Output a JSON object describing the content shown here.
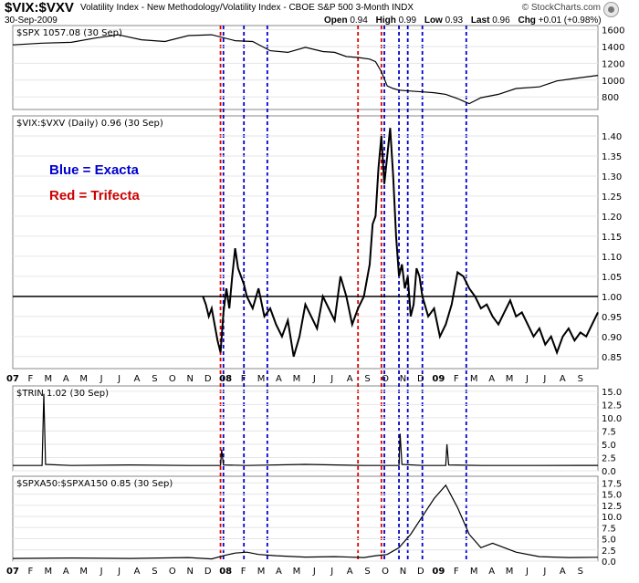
{
  "header": {
    "symbol": "$VIX:$VXV",
    "description": "Volatility Index - New Methodology/Volatility Index - CBOE S&P 500 3-Month  INDX",
    "date": "30-Sep-2009",
    "open_label": "Open",
    "open": "0.94",
    "high_label": "High",
    "high": "0.99",
    "low_label": "Low",
    "low": "0.93",
    "last_label": "Last",
    "last": "0.96",
    "chg_label": "Chg",
    "chg": "+0.01 (+0.98%)",
    "credit": "© StockCharts.com",
    "credit_icon": "stockcharts-logo-icon"
  },
  "annotations": {
    "blue": "Blue = Exacta",
    "red": "Red = Trifecta",
    "colors": {
      "blue": "#0000cc",
      "red": "#dd0000"
    }
  },
  "chart_data": [
    {
      "type": "line",
      "panel": "spx",
      "label": "$SPX 1057.08 (30 Sep)",
      "yticks": [
        800,
        1000,
        1200,
        1400,
        1600
      ],
      "ylim": [
        650,
        1650
      ],
      "series": [
        {
          "t": [
            0,
            0.05,
            0.1,
            0.14,
            0.18,
            0.22,
            0.26,
            0.3,
            0.34,
            0.38,
            0.41,
            0.44,
            0.47,
            0.5,
            0.53,
            0.55,
            0.57,
            0.59,
            0.61,
            0.62,
            0.63,
            0.64,
            0.65,
            0.66,
            0.68,
            0.7,
            0.72,
            0.74,
            0.76,
            0.78,
            0.8,
            0.83,
            0.86,
            0.9,
            0.93,
            0.96,
            1.0
          ],
          "values": [
            1420,
            1440,
            1450,
            1500,
            1540,
            1480,
            1460,
            1530,
            1540,
            1470,
            1460,
            1350,
            1330,
            1390,
            1340,
            1330,
            1280,
            1270,
            1250,
            1220,
            1100,
            930,
            900,
            880,
            870,
            860,
            850,
            830,
            780,
            720,
            790,
            830,
            900,
            920,
            990,
            1020,
            1057
          ]
        }
      ],
      "color": "#000000"
    },
    {
      "type": "line",
      "panel": "main",
      "label": "$VIX:$VXV (Daily) 0.96 (30 Sep)",
      "yticks": [
        0.85,
        0.9,
        0.95,
        1.0,
        1.05,
        1.1,
        1.15,
        1.2,
        1.25,
        1.3,
        1.35,
        1.4
      ],
      "ylim": [
        0.82,
        1.45
      ],
      "reference_line": 1.0,
      "series": [
        {
          "t": [
            0.325,
            0.33,
            0.335,
            0.34,
            0.345,
            0.35,
            0.355,
            0.36,
            0.365,
            0.37,
            0.375,
            0.38,
            0.385,
            0.39,
            0.395,
            0.4,
            0.41,
            0.42,
            0.43,
            0.44,
            0.45,
            0.46,
            0.47,
            0.48,
            0.49,
            0.5,
            0.51,
            0.52,
            0.53,
            0.54,
            0.55,
            0.56,
            0.57,
            0.58,
            0.59,
            0.6,
            0.61,
            0.615,
            0.62,
            0.625,
            0.63,
            0.635,
            0.64,
            0.645,
            0.65,
            0.655,
            0.66,
            0.665,
            0.67,
            0.675,
            0.68,
            0.685,
            0.69,
            0.695,
            0.7,
            0.71,
            0.72,
            0.73,
            0.74,
            0.75,
            0.76,
            0.77,
            0.78,
            0.79,
            0.8,
            0.81,
            0.82,
            0.83,
            0.84,
            0.85,
            0.86,
            0.87,
            0.88,
            0.89,
            0.9,
            0.91,
            0.92,
            0.93,
            0.94,
            0.95,
            0.96,
            0.97,
            0.98,
            0.99,
            1.0
          ],
          "values": [
            1.0,
            0.98,
            0.95,
            0.97,
            0.93,
            0.89,
            0.86,
            0.96,
            1.02,
            0.97,
            1.05,
            1.12,
            1.07,
            1.05,
            1.03,
            1.0,
            0.97,
            1.02,
            0.95,
            0.97,
            0.93,
            0.9,
            0.94,
            0.85,
            0.9,
            0.98,
            0.95,
            0.92,
            1.0,
            0.97,
            0.94,
            1.05,
            1.0,
            0.93,
            0.97,
            1.0,
            1.08,
            1.18,
            1.2,
            1.32,
            1.4,
            1.28,
            1.35,
            1.42,
            1.3,
            1.15,
            1.05,
            1.08,
            1.02,
            1.05,
            0.95,
            0.98,
            1.07,
            1.05,
            1.0,
            0.95,
            0.97,
            0.9,
            0.93,
            0.98,
            1.06,
            1.05,
            1.02,
            1.0,
            0.97,
            0.98,
            0.95,
            0.93,
            0.96,
            0.99,
            0.95,
            0.96,
            0.93,
            0.9,
            0.92,
            0.88,
            0.9,
            0.86,
            0.9,
            0.92,
            0.89,
            0.91,
            0.9,
            0.93,
            0.96
          ]
        }
      ],
      "color": "#000000",
      "xticks": [
        "07",
        "F",
        "M",
        "A",
        "M",
        "J",
        "J",
        "A",
        "S",
        "O",
        "N",
        "D",
        "08",
        "F",
        "M",
        "A",
        "M",
        "J",
        "J",
        "A",
        "S",
        "O",
        "N",
        "D",
        "09",
        "F",
        "M",
        "A",
        "M",
        "J",
        "J",
        "A",
        "S"
      ]
    },
    {
      "type": "line",
      "panel": "trin",
      "label": "$TRIN 1.02 (30 Sep)",
      "yticks": [
        0.0,
        2.5,
        5.0,
        7.5,
        10.0,
        12.5,
        15.0
      ],
      "ylim": [
        0,
        16
      ],
      "series": [
        {
          "t": [
            0,
            0.05,
            0.053,
            0.056,
            0.1,
            0.2,
            0.3,
            0.355,
            0.357,
            0.36,
            0.4,
            0.5,
            0.6,
            0.66,
            0.662,
            0.665,
            0.7,
            0.74,
            0.742,
            0.745,
            0.8,
            0.9,
            1.0
          ],
          "values": [
            1.0,
            1.0,
            14.5,
            1.2,
            1.0,
            1.1,
            1.0,
            1.0,
            4.0,
            1.1,
            1.0,
            1.2,
            1.0,
            1.0,
            7.0,
            1.2,
            1.0,
            1.0,
            5.0,
            1.1,
            1.0,
            1.0,
            1.02
          ]
        }
      ],
      "color": "#000000"
    },
    {
      "type": "line",
      "panel": "spxa",
      "label": "$SPXA50:$SPXA150 0.85 (30 Sep)",
      "yticks": [
        0.0,
        2.5,
        5.0,
        7.5,
        10.0,
        12.5,
        15.0,
        17.5
      ],
      "ylim": [
        0,
        19
      ],
      "series": [
        {
          "t": [
            0,
            0.1,
            0.2,
            0.3,
            0.34,
            0.36,
            0.38,
            0.4,
            0.42,
            0.45,
            0.5,
            0.55,
            0.6,
            0.62,
            0.64,
            0.66,
            0.68,
            0.7,
            0.72,
            0.74,
            0.76,
            0.78,
            0.8,
            0.82,
            0.86,
            0.9,
            0.95,
            1.0
          ],
          "values": [
            0.6,
            0.7,
            0.6,
            0.8,
            0.5,
            1.2,
            1.8,
            2.0,
            1.5,
            1.2,
            0.9,
            1.0,
            0.8,
            1.2,
            1.5,
            3.0,
            6.0,
            10.0,
            14.0,
            17.0,
            12.0,
            6.0,
            3.0,
            4.0,
            2.0,
            1.0,
            0.8,
            0.85
          ]
        }
      ],
      "color": "#000000",
      "xticks": [
        "07",
        "F",
        "M",
        "A",
        "M",
        "J",
        "J",
        "A",
        "S",
        "O",
        "N",
        "D",
        "08",
        "F",
        "M",
        "A",
        "M",
        "J",
        "J",
        "A",
        "S",
        "O",
        "N",
        "D",
        "09",
        "F",
        "M",
        "A",
        "M",
        "J",
        "J",
        "A",
        "S"
      ]
    }
  ],
  "signals": {
    "red_t": [
      0.355,
      0.59,
      0.63
    ],
    "blue_t": [
      0.36,
      0.395,
      0.435,
      0.635,
      0.66,
      0.675,
      0.7,
      0.775
    ]
  }
}
